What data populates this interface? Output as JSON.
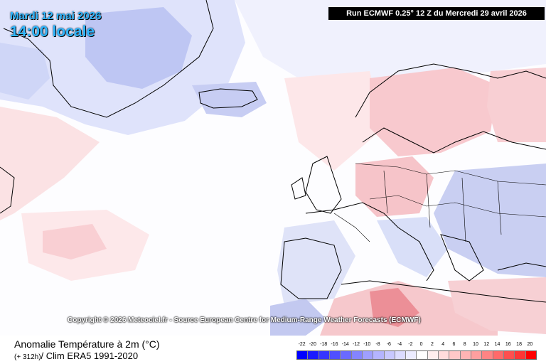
{
  "map": {
    "date_label": "Mardi 12 mai 2026",
    "time_label": "14:00 locale",
    "run_label": "Run ECMWF 0.25° 12 Z du Mercredi 29 avril 2026",
    "copyright": "Copyright © 2026 Meteociel.fr - Source European Centre for Medium-Range Weather Forecasts (ECMWF)",
    "variable_title": "Anomalie Température à 2m (°C)",
    "lead_time": "(+ 312h)",
    "climatology": "/ Clim ERA5 1991-2020"
  },
  "legend": {
    "ticks": [
      "-22",
      "-20",
      "-18",
      "-16",
      "-14",
      "-12",
      "-10",
      "-8",
      "-6",
      "-4",
      "-2",
      "0",
      "2",
      "4",
      "6",
      "8",
      "10",
      "12",
      "14",
      "16",
      "18",
      "20"
    ],
    "colors": [
      "#0000ff",
      "#1a1aff",
      "#3535ff",
      "#4f4fff",
      "#6a6aff",
      "#8484ff",
      "#9f9fff",
      "#b4b4ff",
      "#c8c8ff",
      "#dcdcff",
      "#ececff",
      "#ffffff",
      "#ffeeee",
      "#ffdcdc",
      "#ffc8c8",
      "#ffb4b4",
      "#ff9f9f",
      "#ff8484",
      "#ff6a6a",
      "#ff4f4f",
      "#ff3535",
      "#ff0000"
    ]
  }
}
